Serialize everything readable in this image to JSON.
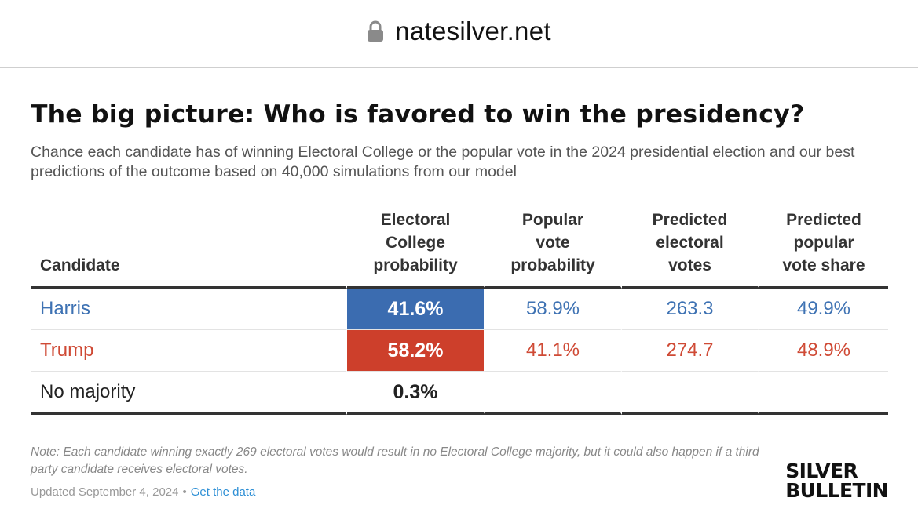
{
  "browser": {
    "url": "natesilver.net",
    "lock_icon": "lock-icon"
  },
  "article": {
    "title": "The big picture: Who is favored to win the presidency?",
    "subtitle": "Chance each candidate has of winning Electoral College or the popular vote in the 2024 presidential election and our best predictions of the outcome based on 40,000 simulations from our model"
  },
  "table": {
    "headers": {
      "candidate": "Candidate",
      "ec_prob": [
        "Electoral",
        "College",
        "probability"
      ],
      "pop_prob": [
        "Popular",
        "vote",
        "probability"
      ],
      "pred_ev": [
        "Predicted",
        "electoral",
        "votes"
      ],
      "pred_share": [
        "Predicted",
        "popular",
        "vote share"
      ]
    },
    "rows": [
      {
        "candidate": "Harris",
        "ec_prob": "41.6%",
        "pop_prob": "58.9%",
        "pred_ev": "263.3",
        "pred_share": "49.9%"
      },
      {
        "candidate": "Trump",
        "ec_prob": "58.2%",
        "pop_prob": "41.1%",
        "pred_ev": "274.7",
        "pred_share": "48.9%"
      },
      {
        "candidate": "No majority",
        "ec_prob": "0.3%",
        "pop_prob": "",
        "pred_ev": "",
        "pred_share": ""
      }
    ]
  },
  "colors": {
    "harris": "#3b6cb0",
    "trump": "#cd3f2b",
    "link": "#2d8fd5"
  },
  "footer": {
    "note": "Note: Each candidate winning exactly 269 electoral votes would result in no Electoral College majority, but it could also happen if a third party candidate receives electoral votes.",
    "updated": "Updated September 4, 2024",
    "separator": "•",
    "link_label": "Get the data"
  },
  "logo": {
    "line1": "SILVER",
    "line2": "BULLETIN"
  }
}
